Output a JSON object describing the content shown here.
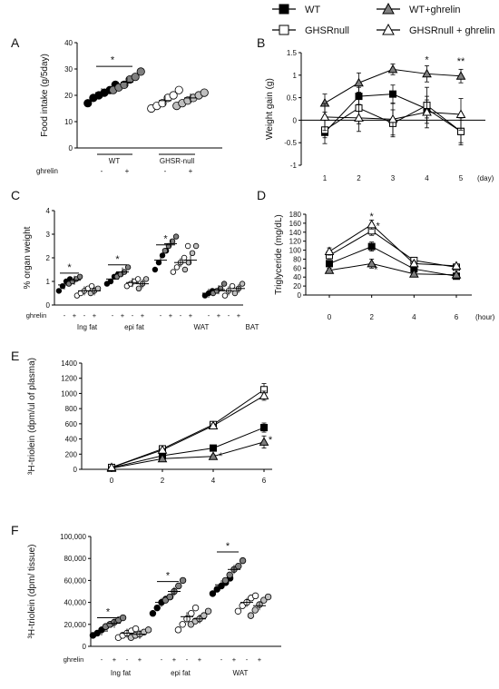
{
  "legend": {
    "items": [
      {
        "label": "WT",
        "marker": "square",
        "fill": "#000000"
      },
      {
        "label": "WT+ghrelin",
        "marker": "triangle",
        "fill": "#808080"
      },
      {
        "label": "GHSRnull",
        "marker": "square",
        "fill": "#ffffff"
      },
      {
        "label": "GHSRnull + ghrelin",
        "marker": "triangle",
        "fill": "#ffffff"
      }
    ]
  },
  "colors": {
    "wt": "#000000",
    "wt_ghrelin": "#7f7f7f",
    "ghsr": "#ffffff",
    "ghsr_ghrelin": "#ffffff",
    "axis": "#000000"
  },
  "chart_data": [
    {
      "panel": "A",
      "type": "scatter",
      "ylabel": "Food intake (g/5day)",
      "yticks": [
        0,
        10,
        20,
        30,
        40
      ],
      "ylim": [
        0,
        40
      ],
      "row_label": "ghrelin",
      "ghrelin_signs": [
        "-",
        "+",
        "-",
        "+"
      ],
      "group_labels": [
        "WT",
        "GHSR-null"
      ],
      "significance": [
        {
          "text": "*",
          "from": 0,
          "to": 1,
          "y": 33
        }
      ],
      "series": [
        {
          "group": "WT",
          "fill": "#000000",
          "points": [
            17,
            19,
            20,
            21,
            22,
            24
          ],
          "mean": 21
        },
        {
          "group": "WT+ghrelin",
          "fill": "#7f7f7f",
          "points": [
            22,
            23,
            24,
            26,
            27,
            29
          ],
          "mean": 25
        },
        {
          "group": "GHSRnull",
          "fill": "#ffffff",
          "points": [
            15,
            16,
            17,
            19,
            20,
            22
          ],
          "mean": 18
        },
        {
          "group": "GHSRnull+ghrelin",
          "fill": "#bfbfbf",
          "points": [
            16,
            17,
            18,
            19,
            20,
            21
          ],
          "mean": 19
        }
      ]
    },
    {
      "panel": "B",
      "type": "line",
      "ylabel": "Weight gain (g)",
      "yticks": [
        -1,
        -0.5,
        0,
        0.5,
        1,
        1.5
      ],
      "ylim": [
        -1,
        1.5
      ],
      "x": [
        1,
        2,
        3,
        4,
        5
      ],
      "xunit": "(day)",
      "annotations": [
        {
          "text": "*",
          "x": 4,
          "y": 1.27
        },
        {
          "text": "**",
          "x": 5,
          "y": 1.24
        }
      ],
      "series": [
        {
          "name": "WT",
          "marker": "square",
          "fill": "#000000",
          "values": [
            -0.27,
            0.53,
            0.58,
            0.25,
            -0.25
          ],
          "err": [
            0.12,
            0.2,
            0.2,
            0.2,
            0.25
          ]
        },
        {
          "name": "WT+ghrelin",
          "marker": "triangle",
          "fill": "#7f7f7f",
          "values": [
            0.38,
            0.83,
            1.13,
            1.03,
            0.98
          ],
          "err": [
            0.2,
            0.22,
            0.12,
            0.18,
            0.15
          ]
        },
        {
          "name": "GHSRnull",
          "marker": "square",
          "fill": "#ffffff",
          "values": [
            -0.22,
            0.27,
            -0.07,
            0.33,
            -0.25
          ],
          "err": [
            0.3,
            0.35,
            0.3,
            0.4,
            0.3
          ]
        },
        {
          "name": "GHSRnull + ghrelin",
          "marker": "triangle",
          "fill": "#ffffff",
          "values": [
            0.07,
            0.05,
            0.02,
            0.18,
            0.13
          ],
          "err": [
            0.3,
            0.3,
            0.35,
            0.35,
            0.35
          ]
        }
      ]
    },
    {
      "panel": "C",
      "type": "scatter",
      "ylabel": "% organ weight",
      "yticks": [
        0,
        1,
        2,
        3,
        4
      ],
      "ylim": [
        0,
        4
      ],
      "row_label": "ghrelin",
      "group_labels": [
        "Ing fat",
        "epi fat",
        "WAT",
        "BAT"
      ],
      "significance": [
        {
          "text": "*",
          "group": 0,
          "y": 1.35
        },
        {
          "text": "*",
          "group": 1,
          "y": 1.7
        },
        {
          "text": "*",
          "group": 2,
          "y": 2.55
        }
      ],
      "groups": [
        {
          "series": [
            {
              "fill": "#000000",
              "points": [
                0.6,
                0.8,
                1.0,
                1.1
              ],
              "mean": 0.85
            },
            {
              "fill": "#7f7f7f",
              "points": [
                0.9,
                1.0,
                1.1,
                1.2
              ],
              "mean": 1.05
            },
            {
              "fill": "#ffffff",
              "points": [
                0.4,
                0.5,
                0.6,
                0.7,
                0.8
              ],
              "mean": 0.6
            },
            {
              "fill": "#bfbfbf",
              "points": [
                0.5,
                0.6,
                0.7
              ],
              "mean": 0.6
            }
          ]
        },
        {
          "series": [
            {
              "fill": "#000000",
              "points": [
                0.9,
                1.0,
                1.2,
                1.3
              ],
              "mean": 1.1
            },
            {
              "fill": "#7f7f7f",
              "points": [
                1.2,
                1.3,
                1.4,
                1.6
              ],
              "mean": 1.4
            },
            {
              "fill": "#ffffff",
              "points": [
                0.8,
                0.9,
                1.0,
                1.1
              ],
              "mean": 0.95
            },
            {
              "fill": "#bfbfbf",
              "points": [
                0.7,
                0.9,
                1.1
              ],
              "mean": 0.9
            }
          ]
        },
        {
          "series": [
            {
              "fill": "#000000",
              "points": [
                1.5,
                1.8,
                2.1,
                2.3
              ],
              "mean": 1.9
            },
            {
              "fill": "#7f7f7f",
              "points": [
                2.3,
                2.5,
                2.7,
                2.9
              ],
              "mean": 2.6
            },
            {
              "fill": "#ffffff",
              "points": [
                1.4,
                1.6,
                1.8,
                2.0,
                2.5
              ],
              "mean": 1.8
            },
            {
              "fill": "#bfbfbf",
              "points": [
                1.5,
                1.8,
                2.2,
                2.5
              ],
              "mean": 1.9
            }
          ]
        },
        {
          "series": [
            {
              "fill": "#000000",
              "points": [
                0.4,
                0.5,
                0.6
              ],
              "mean": 0.5
            },
            {
              "fill": "#7f7f7f",
              "points": [
                0.5,
                0.6,
                0.7,
                0.9
              ],
              "mean": 0.65
            },
            {
              "fill": "#ffffff",
              "points": [
                0.4,
                0.6,
                0.8
              ],
              "mean": 0.6
            },
            {
              "fill": "#bfbfbf",
              "points": [
                0.5,
                0.7,
                0.9
              ],
              "mean": 0.7
            }
          ]
        }
      ]
    },
    {
      "panel": "D",
      "type": "line",
      "ylabel": "Triglyceride (mg/dL)",
      "yticks": [
        0,
        20,
        40,
        60,
        80,
        100,
        120,
        140,
        160,
        180
      ],
      "ylim": [
        0,
        180
      ],
      "x": [
        0,
        2,
        4,
        6
      ],
      "xunit": "(hour)",
      "annotations": [
        {
          "text": "*",
          "x": 2,
          "y": 168
        },
        {
          "text": "*",
          "x": 2.3,
          "y": 147
        },
        {
          "text": "*",
          "x": 2.2,
          "y": 50
        }
      ],
      "series": [
        {
          "name": "WT",
          "marker": "square",
          "fill": "#000000",
          "values": [
            70,
            108,
            58,
            42
          ],
          "err": [
            6,
            10,
            5,
            3
          ]
        },
        {
          "name": "WT+ghrelin",
          "marker": "triangle",
          "fill": "#7f7f7f",
          "values": [
            55,
            70,
            47,
            45
          ],
          "err": [
            5,
            10,
            4,
            3
          ]
        },
        {
          "name": "GHSRnull",
          "marker": "square",
          "fill": "#ffffff",
          "values": [
            88,
            143,
            77,
            62
          ],
          "err": [
            8,
            10,
            6,
            4
          ]
        },
        {
          "name": "GHSRnull + ghrelin",
          "marker": "triangle",
          "fill": "#ffffff",
          "values": [
            97,
            157,
            70,
            65
          ],
          "err": [
            8,
            10,
            5,
            4
          ]
        }
      ]
    },
    {
      "panel": "E",
      "type": "line",
      "ylabel": "³H-triolein (dpm/ul of plasma)",
      "yticks": [
        0,
        200,
        400,
        600,
        800,
        1000,
        1200,
        1400
      ],
      "ylim": [
        0,
        1400
      ],
      "x": [
        0,
        2,
        4,
        6
      ],
      "annotations": [
        {
          "text": "*",
          "x": 6.25,
          "y": 350
        },
        {
          "text": "*",
          "x": 4.3,
          "y": 130
        }
      ],
      "series": [
        {
          "name": "WT",
          "marker": "square",
          "fill": "#000000",
          "values": [
            20,
            180,
            280,
            550
          ],
          "err": [
            3,
            15,
            20,
            60
          ]
        },
        {
          "name": "WT+ghrelin",
          "marker": "triangle",
          "fill": "#7f7f7f",
          "values": [
            15,
            140,
            170,
            360
          ],
          "err": [
            3,
            15,
            20,
            80
          ]
        },
        {
          "name": "GHSRnull",
          "marker": "square",
          "fill": "#ffffff",
          "values": [
            25,
            270,
            590,
            1050
          ],
          "err": [
            3,
            20,
            25,
            80
          ]
        },
        {
          "name": "GHSRnull + ghrelin",
          "marker": "triangle",
          "fill": "#ffffff",
          "values": [
            25,
            255,
            575,
            970
          ],
          "err": [
            3,
            20,
            25,
            60
          ]
        }
      ]
    },
    {
      "panel": "F",
      "type": "scatter",
      "ylabel": "³H-triolein (dpm/ tissue)",
      "yticks": [
        0,
        20000,
        40000,
        60000,
        80000,
        100000
      ],
      "ytick_labels": [
        "0",
        "20,000",
        "40,000",
        "60,000",
        "80,000",
        "100,000"
      ],
      "ylim": [
        0,
        100000
      ],
      "row_label": "ghrelin",
      "group_labels": [
        "Ing fat",
        "epi fat",
        "WAT"
      ],
      "significance": [
        {
          "text": "*",
          "group": 0,
          "y": 26000
        },
        {
          "text": "*",
          "group": 1,
          "y": 59000
        },
        {
          "text": "*",
          "group": 2,
          "y": 86000
        }
      ],
      "groups": [
        {
          "series": [
            {
              "fill": "#000000",
              "points": [
                10000,
                12000,
                15000,
                18000,
                20000
              ],
              "mean": 14000
            },
            {
              "fill": "#7f7f7f",
              "points": [
                18000,
                20000,
                22000,
                24000,
                26000
              ],
              "mean": 21000
            },
            {
              "fill": "#ffffff",
              "points": [
                8000,
                10000,
                12000,
                14000,
                16000
              ],
              "mean": 12000
            },
            {
              "fill": "#bfbfbf",
              "points": [
                8000,
                10000,
                11000,
                13000,
                15000
              ],
              "mean": 11000
            }
          ]
        },
        {
          "series": [
            {
              "fill": "#000000",
              "points": [
                30000,
                35000,
                40000,
                43000,
                45000
              ],
              "mean": 40000
            },
            {
              "fill": "#7f7f7f",
              "points": [
                42000,
                45000,
                50000,
                55000,
                60000
              ],
              "mean": 50000
            },
            {
              "fill": "#ffffff",
              "points": [
                15000,
                20000,
                25000,
                30000,
                35000
              ],
              "mean": 27000
            },
            {
              "fill": "#bfbfbf",
              "points": [
                20000,
                23000,
                25000,
                28000,
                32000
              ],
              "mean": 25000
            }
          ]
        },
        {
          "series": [
            {
              "fill": "#000000",
              "points": [
                48000,
                52000,
                55000,
                58000,
                62000
              ],
              "mean": 56000
            },
            {
              "fill": "#7f7f7f",
              "points": [
                60000,
                65000,
                70000,
                73000,
                78000
              ],
              "mean": 70000
            },
            {
              "fill": "#ffffff",
              "points": [
                32000,
                37000,
                40000,
                44000,
                46000
              ],
              "mean": 40000
            },
            {
              "fill": "#bfbfbf",
              "points": [
                28000,
                33000,
                38000,
                42000,
                45000
              ],
              "mean": 37000
            }
          ]
        }
      ]
    }
  ],
  "panel_labels": [
    "A",
    "B",
    "C",
    "D",
    "E",
    "F"
  ]
}
